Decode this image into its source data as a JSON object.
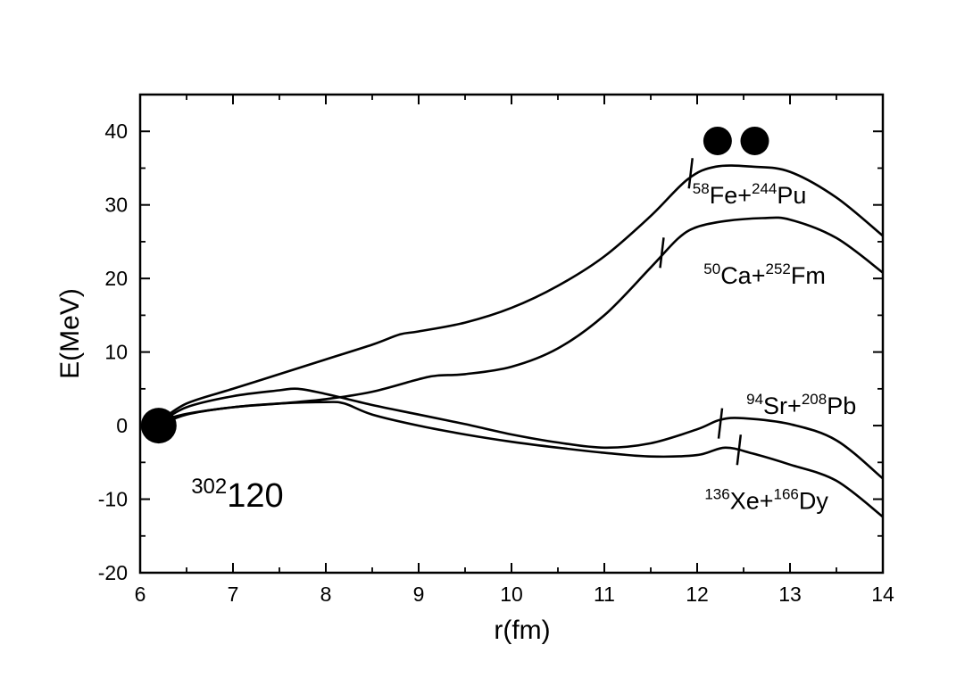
{
  "chart_data": {
    "type": "line",
    "xlabel": "r(fm)",
    "ylabel": "E(MeV)",
    "xlim": [
      6,
      14
    ],
    "ylim": [
      -20,
      45
    ],
    "xticks": [
      6,
      7,
      8,
      9,
      10,
      11,
      12,
      13,
      14
    ],
    "xtick_labels": [
      "6",
      "7",
      "8",
      "9",
      "10",
      "11",
      "12",
      "13",
      "14"
    ],
    "yticks": [
      -20,
      -10,
      0,
      10,
      20,
      30,
      40
    ],
    "ytick_labels": [
      "-20",
      "-10",
      "0",
      "10",
      "20",
      "30",
      "40"
    ],
    "grid": false,
    "compound_label": {
      "mass": "302",
      "element": "120",
      "x": 6.55,
      "y": -11
    },
    "nucleus_marker": {
      "x": 6.2,
      "y": 0
    },
    "twin_markers": {
      "x": [
        12.22,
        12.62
      ],
      "y": 38.7
    },
    "series": [
      {
        "label": {
          "mass1": "58",
          "el1": "Fe+",
          "mass2": "244",
          "el2": "Pu",
          "x": 11.95,
          "y": 30.2
        },
        "tick": {
          "x": 11.93,
          "y": 34.3
        },
        "x": [
          6.2,
          6.5,
          7.0,
          7.5,
          8.0,
          8.5,
          8.8,
          9.0,
          9.5,
          10.0,
          10.5,
          11.0,
          11.5,
          11.9,
          12.2,
          12.6,
          13.0,
          13.5,
          14.0
        ],
        "y": [
          0.5,
          3.0,
          5.0,
          7.0,
          9.0,
          11.0,
          12.4,
          12.8,
          14.0,
          16.0,
          19.0,
          23.0,
          28.5,
          33.5,
          35.2,
          35.2,
          34.5,
          31.0,
          25.8
        ]
      },
      {
        "label": {
          "mass1": "50",
          "el1": "Ca+",
          "mass2": "252",
          "el2": "Fm",
          "x": 12.07,
          "y": 19.3
        },
        "tick": {
          "x": 11.62,
          "y": 23.5
        },
        "x": [
          6.2,
          6.5,
          7.0,
          7.5,
          8.0,
          8.5,
          9.0,
          9.2,
          9.5,
          10.0,
          10.5,
          11.0,
          11.5,
          11.8,
          12.0,
          12.3,
          12.7,
          13.0,
          13.5,
          14.0
        ],
        "y": [
          0.6,
          1.6,
          2.5,
          3.0,
          3.6,
          4.6,
          6.3,
          6.8,
          7.0,
          8.0,
          10.5,
          15.0,
          21.5,
          25.5,
          27.0,
          27.8,
          28.2,
          28.0,
          25.5,
          20.8
        ]
      },
      {
        "label": {
          "mass1": "94",
          "el1": "Sr+",
          "mass2": "208",
          "el2": "Pb",
          "x": 12.53,
          "y": 1.6
        },
        "tick": {
          "x": 12.25,
          "y": 0.3
        },
        "x": [
          6.2,
          6.5,
          7.0,
          7.5,
          7.7,
          8.0,
          8.5,
          9.0,
          9.5,
          10.0,
          10.5,
          11.0,
          11.5,
          12.0,
          12.25,
          12.5,
          13.0,
          13.5,
          14.0
        ],
        "y": [
          0.3,
          2.5,
          4.0,
          4.8,
          5.0,
          4.3,
          2.8,
          1.5,
          0.2,
          -1.2,
          -2.3,
          -3.0,
          -2.4,
          -0.5,
          0.8,
          1.0,
          0.2,
          -2.0,
          -7.2
        ]
      },
      {
        "label": {
          "mass1": "136",
          "el1": "Xe+",
          "mass2": "166",
          "el2": "Dy",
          "x": 12.08,
          "y": -11.3
        },
        "tick": {
          "x": 12.45,
          "y": -3.3
        },
        "x": [
          6.2,
          6.5,
          7.0,
          7.5,
          8.0,
          8.2,
          8.5,
          9.0,
          9.5,
          10.0,
          10.5,
          11.0,
          11.5,
          12.0,
          12.3,
          12.6,
          13.0,
          13.5,
          14.0
        ],
        "y": [
          0.0,
          1.5,
          2.5,
          3.0,
          3.2,
          3.0,
          1.5,
          0.0,
          -1.2,
          -2.2,
          -3.0,
          -3.7,
          -4.2,
          -4.0,
          -3.0,
          -3.8,
          -5.3,
          -7.5,
          -12.4
        ]
      }
    ]
  }
}
